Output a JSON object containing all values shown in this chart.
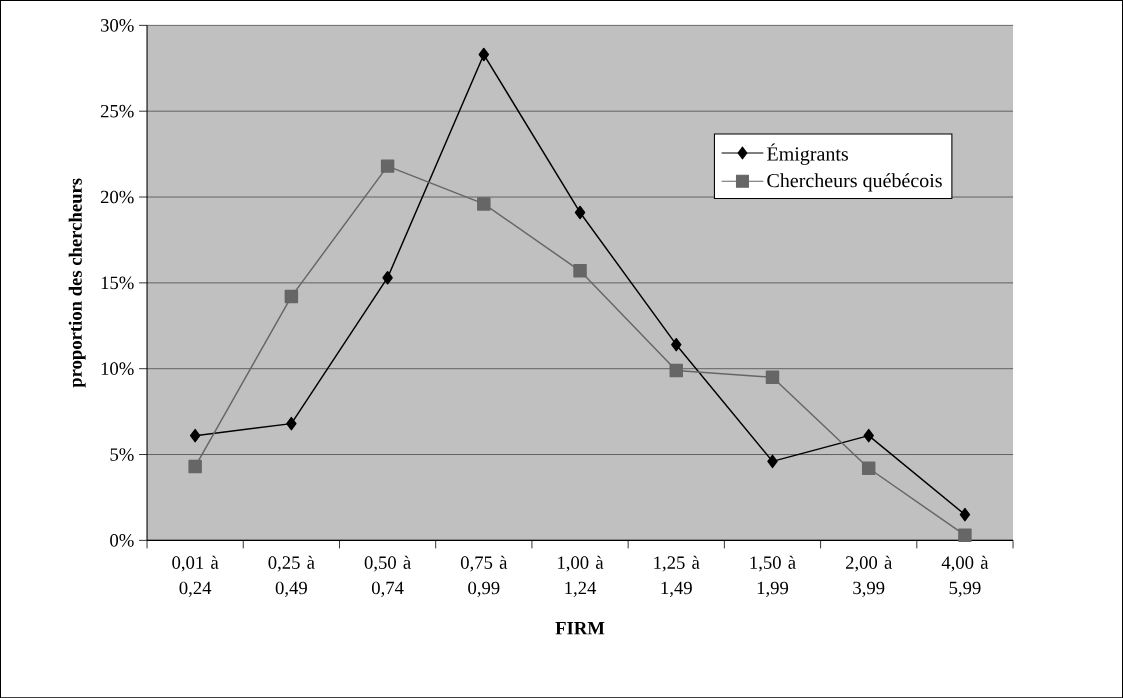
{
  "chart_data": {
    "type": "line",
    "xlabel": "FIRM",
    "ylabel": "proportion des chercheurs",
    "categories": [
      "0,01 à 0,24",
      "0,25 à 0,49",
      "0,50 à 0,74",
      "0,75 à 0,99",
      "1,00 à 1,24",
      "1,25 à 1,49",
      "1,50 à 1,99",
      "2,00 à 3,99",
      "4,00 à 5,99"
    ],
    "series": [
      {
        "name": "Émigrants",
        "color": "#000000",
        "marker": "diamond",
        "values": [
          6.1,
          6.8,
          15.3,
          28.3,
          19.1,
          11.4,
          4.6,
          6.1,
          1.5
        ]
      },
      {
        "name": "Chercheurs québécois",
        "color": "#666666",
        "marker": "square",
        "values": [
          4.3,
          14.2,
          21.8,
          19.6,
          15.7,
          9.9,
          9.5,
          4.2,
          0.3
        ]
      }
    ],
    "ylim": [
      0,
      30
    ],
    "yticks": [
      {
        "value": 0,
        "label": "0%"
      },
      {
        "value": 5,
        "label": "5%"
      },
      {
        "value": 10,
        "label": "10%"
      },
      {
        "value": 15,
        "label": "15%"
      },
      {
        "value": 20,
        "label": "20%"
      },
      {
        "value": 25,
        "label": "25%"
      },
      {
        "value": 30,
        "label": "30%"
      }
    ],
    "grid": "y",
    "legend": "top right",
    "line_style": "solid"
  }
}
